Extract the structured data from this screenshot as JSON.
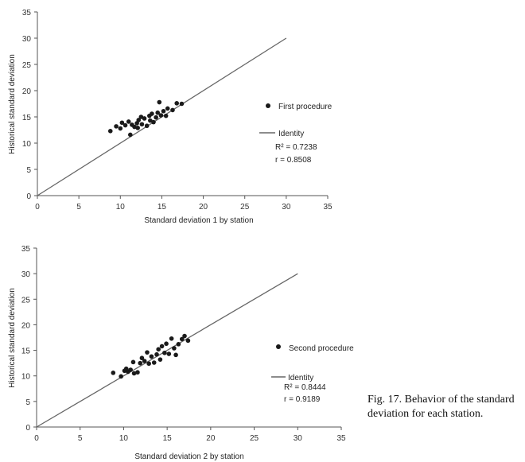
{
  "chart_data": [
    {
      "type": "scatter",
      "xlabel": "Standard deviation 1 by station",
      "ylabel": "Historical standard deviation",
      "xlim": [
        0,
        35
      ],
      "ylim": [
        0,
        35
      ],
      "xticks": [
        "0",
        "5",
        "10",
        "15",
        "20",
        "25",
        "30",
        "35"
      ],
      "yticks": [
        "0",
        "5",
        "10",
        "15",
        "20",
        "25",
        "30",
        "35"
      ],
      "series": [
        {
          "name": "First procedure",
          "kind": "points",
          "points": [
            [
              8.8,
              12.3
            ],
            [
              9.5,
              13.2
            ],
            [
              10.0,
              12.8
            ],
            [
              10.2,
              13.9
            ],
            [
              10.6,
              13.4
            ],
            [
              11.0,
              14.1
            ],
            [
              11.2,
              11.6
            ],
            [
              11.4,
              13.5
            ],
            [
              11.7,
              13.1
            ],
            [
              12.0,
              13.8
            ],
            [
              12.2,
              14.4
            ],
            [
              12.5,
              15.0
            ],
            [
              12.6,
              13.6
            ],
            [
              12.9,
              14.7
            ],
            [
              13.2,
              13.3
            ],
            [
              13.5,
              15.2
            ],
            [
              13.6,
              14.3
            ],
            [
              13.8,
              15.6
            ],
            [
              14.0,
              14.0
            ],
            [
              14.3,
              14.9
            ],
            [
              14.5,
              15.8
            ],
            [
              14.7,
              17.8
            ],
            [
              14.9,
              15.3
            ],
            [
              15.2,
              16.1
            ],
            [
              15.5,
              15.2
            ],
            [
              15.7,
              16.6
            ],
            [
              16.3,
              16.3
            ],
            [
              16.8,
              17.6
            ],
            [
              17.4,
              17.5
            ],
            [
              12.1,
              12.9
            ]
          ]
        },
        {
          "name": "Identity",
          "kind": "line",
          "points": [
            [
              0,
              0
            ],
            [
              30,
              30
            ]
          ]
        }
      ],
      "annotations": [
        "R² = 0.7238",
        "r = 0.8508"
      ]
    },
    {
      "type": "scatter",
      "xlabel": "Standard deviation 2 by station",
      "ylabel": "Historical standard deviation",
      "xlim": [
        0,
        35
      ],
      "ylim": [
        0,
        35
      ],
      "xticks": [
        "0",
        "5",
        "10",
        "15",
        "20",
        "25",
        "30",
        "35"
      ],
      "yticks": [
        "0",
        "5",
        "10",
        "15",
        "20",
        "25",
        "30",
        "35"
      ],
      "series": [
        {
          "name": "Second procedure",
          "kind": "points",
          "points": [
            [
              8.8,
              10.6
            ],
            [
              9.7,
              9.9
            ],
            [
              10.1,
              11.0
            ],
            [
              10.3,
              11.4
            ],
            [
              10.5,
              10.8
            ],
            [
              10.8,
              11.2
            ],
            [
              11.1,
              12.7
            ],
            [
              11.2,
              10.5
            ],
            [
              11.6,
              10.7
            ],
            [
              11.9,
              12.5
            ],
            [
              12.1,
              13.5
            ],
            [
              12.4,
              12.9
            ],
            [
              12.7,
              14.6
            ],
            [
              12.9,
              12.4
            ],
            [
              13.2,
              13.8
            ],
            [
              13.5,
              12.6
            ],
            [
              13.8,
              14.2
            ],
            [
              14.0,
              15.2
            ],
            [
              14.2,
              13.2
            ],
            [
              14.4,
              15.8
            ],
            [
              14.7,
              14.5
            ],
            [
              14.9,
              16.3
            ],
            [
              15.2,
              14.3
            ],
            [
              15.5,
              17.3
            ],
            [
              15.8,
              15.4
            ],
            [
              16.0,
              14.1
            ],
            [
              16.3,
              16.2
            ],
            [
              16.7,
              17.2
            ],
            [
              17.0,
              17.8
            ],
            [
              17.4,
              16.9
            ]
          ]
        },
        {
          "name": "Identity",
          "kind": "line",
          "points": [
            [
              0,
              0
            ],
            [
              30,
              30
            ]
          ]
        }
      ],
      "annotations": [
        "R² = 0.8444",
        "r = 0.9189"
      ]
    }
  ],
  "caption": "Fig. 17. Behavior of the standard deviation for each station."
}
